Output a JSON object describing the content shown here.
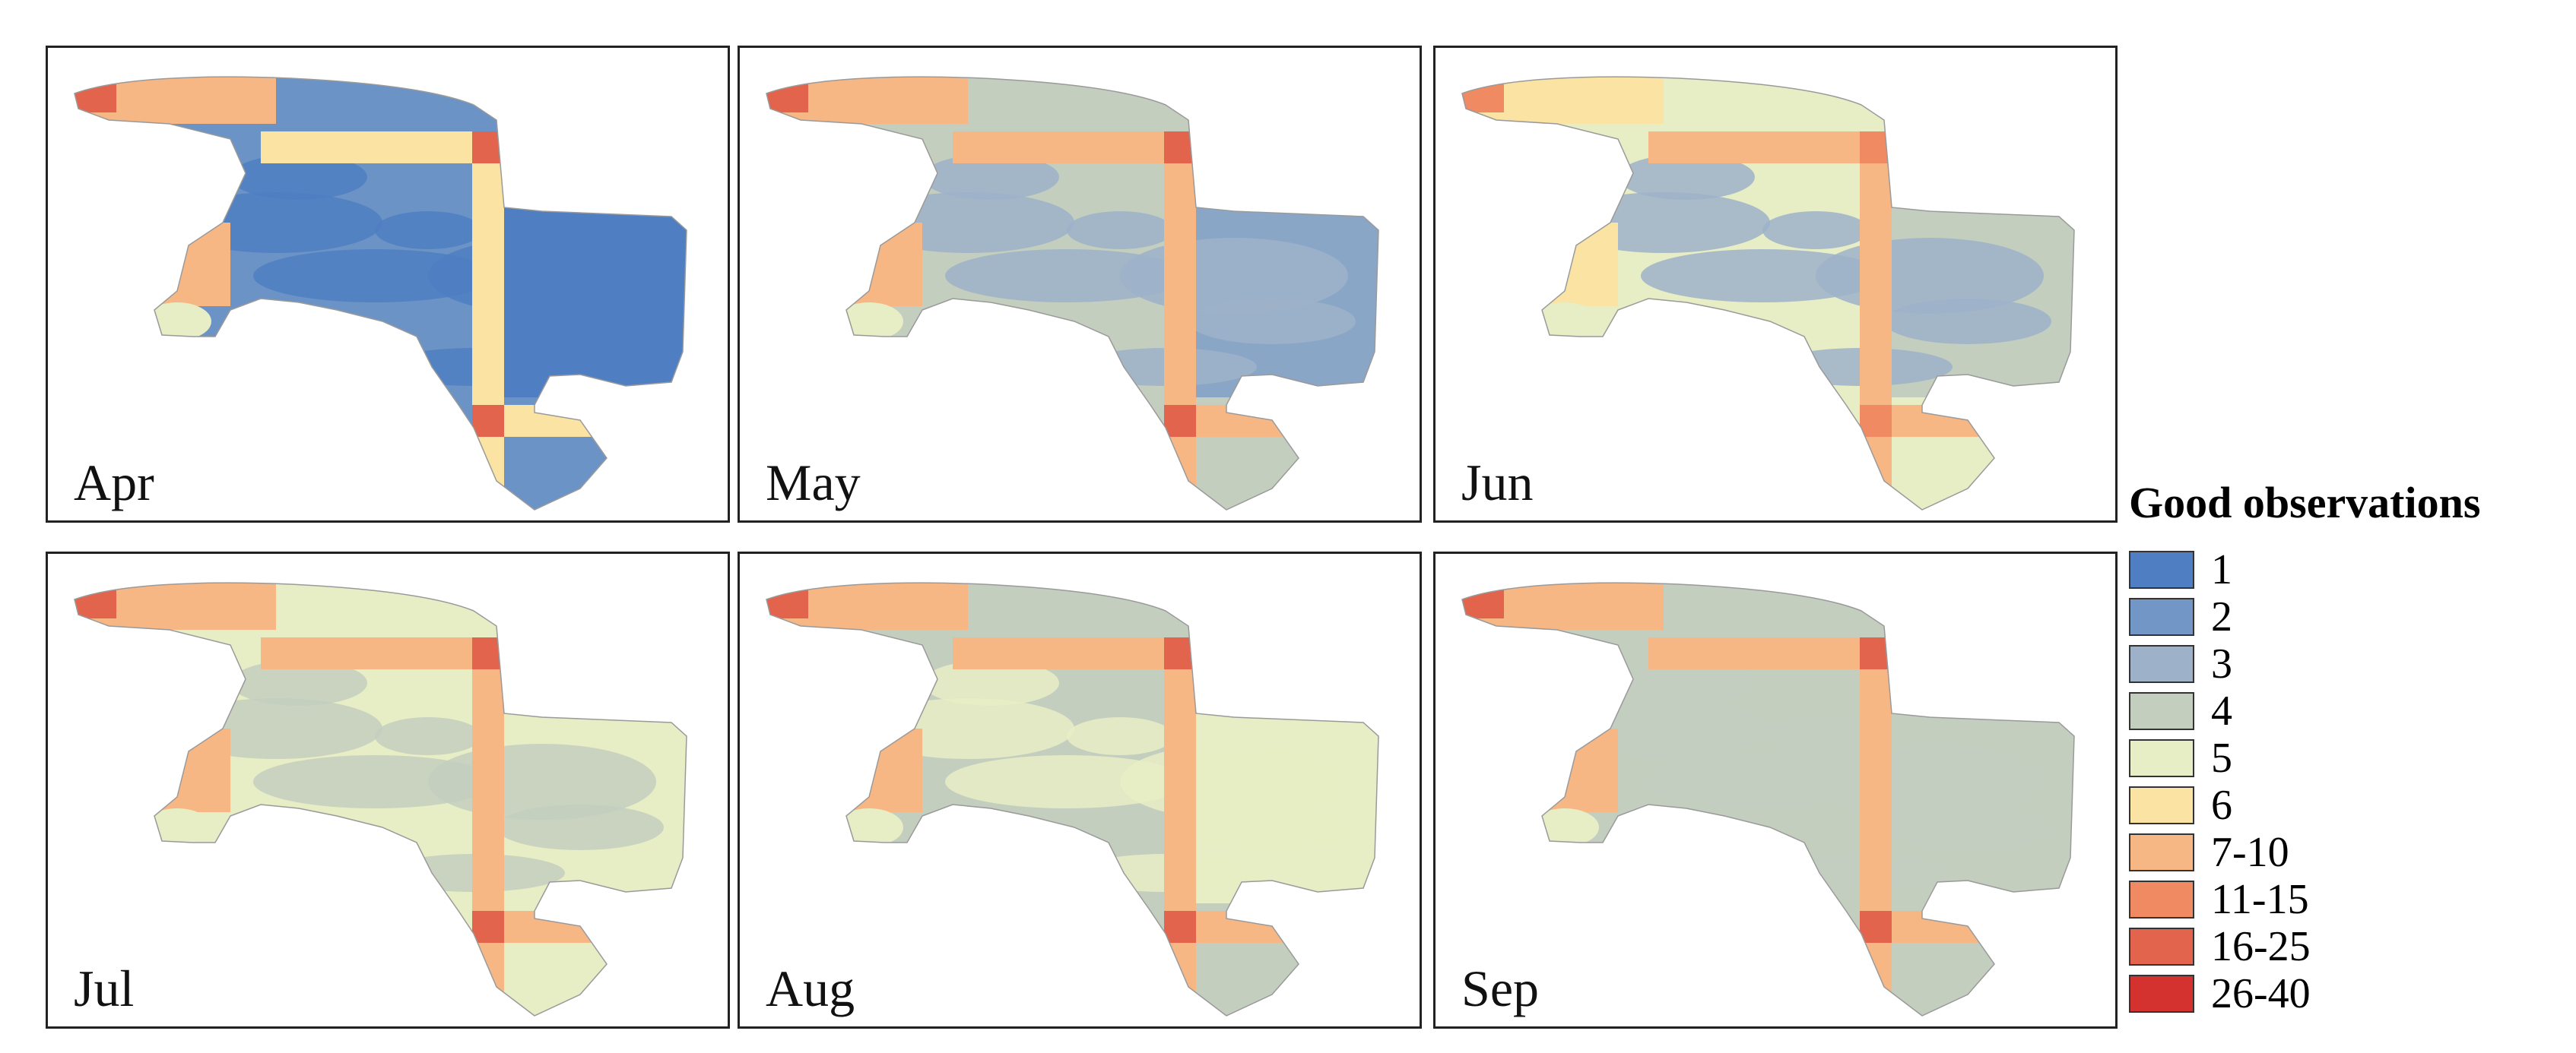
{
  "legend": {
    "title": "Good observations",
    "items": [
      {
        "label": "1",
        "color": "#4f7fc2"
      },
      {
        "label": "2",
        "color": "#7297c6"
      },
      {
        "label": "3",
        "color": "#9db2c9"
      },
      {
        "label": "4",
        "color": "#c3cebf"
      },
      {
        "label": "5",
        "color": "#e7edc4"
      },
      {
        "label": "6",
        "color": "#fbe3a3"
      },
      {
        "label": "7-10",
        "color": "#f7b785"
      },
      {
        "label": "11-15",
        "color": "#ef8a62"
      },
      {
        "label": "16-25",
        "color": "#e2644d"
      },
      {
        "label": "26-40",
        "color": "#d3322f"
      }
    ]
  },
  "panels": [
    {
      "month": "Apr",
      "base": "#6c93c6",
      "patch": "#4f7fc2",
      "east": "#4f7fc2",
      "strip": "#fbe3a3",
      "tip": "#e2644d",
      "spit": "#f7b785",
      "spot": "#e7edc4"
    },
    {
      "month": "May",
      "base": "#c3cebf",
      "patch": "#9db2c9",
      "east": "#8aa6c7",
      "strip": "#f7b785",
      "tip": "#e2644d",
      "spit": "#f7b785",
      "spot": "#e7edc4"
    },
    {
      "month": "Jun",
      "base": "#e7edc4",
      "patch": "#9db2c9",
      "east": "#c3cebf",
      "strip": "#f7b785",
      "tip": "#ef8a62",
      "spit": "#fbe3a3",
      "spot": "#e7edc4"
    },
    {
      "month": "Jul",
      "base": "#e7edc4",
      "patch": "#c3cebf",
      "east": "#e7edc4",
      "strip": "#f7b785",
      "tip": "#e2644d",
      "spit": "#f7b785",
      "spot": "#e7edc4"
    },
    {
      "month": "Aug",
      "base": "#c3cebf",
      "patch": "#e7edc4",
      "east": "#e7edc4",
      "strip": "#f7b785",
      "tip": "#e2644d",
      "spit": "#f7b785",
      "spot": "#e7edc4"
    },
    {
      "month": "Sep",
      "base": "#c3cebf",
      "patch": "#c3cebf",
      "east": "#c3cebf",
      "strip": "#f7b785",
      "tip": "#e2644d",
      "spit": "#f7b785",
      "spot": "#e7edc4"
    }
  ]
}
